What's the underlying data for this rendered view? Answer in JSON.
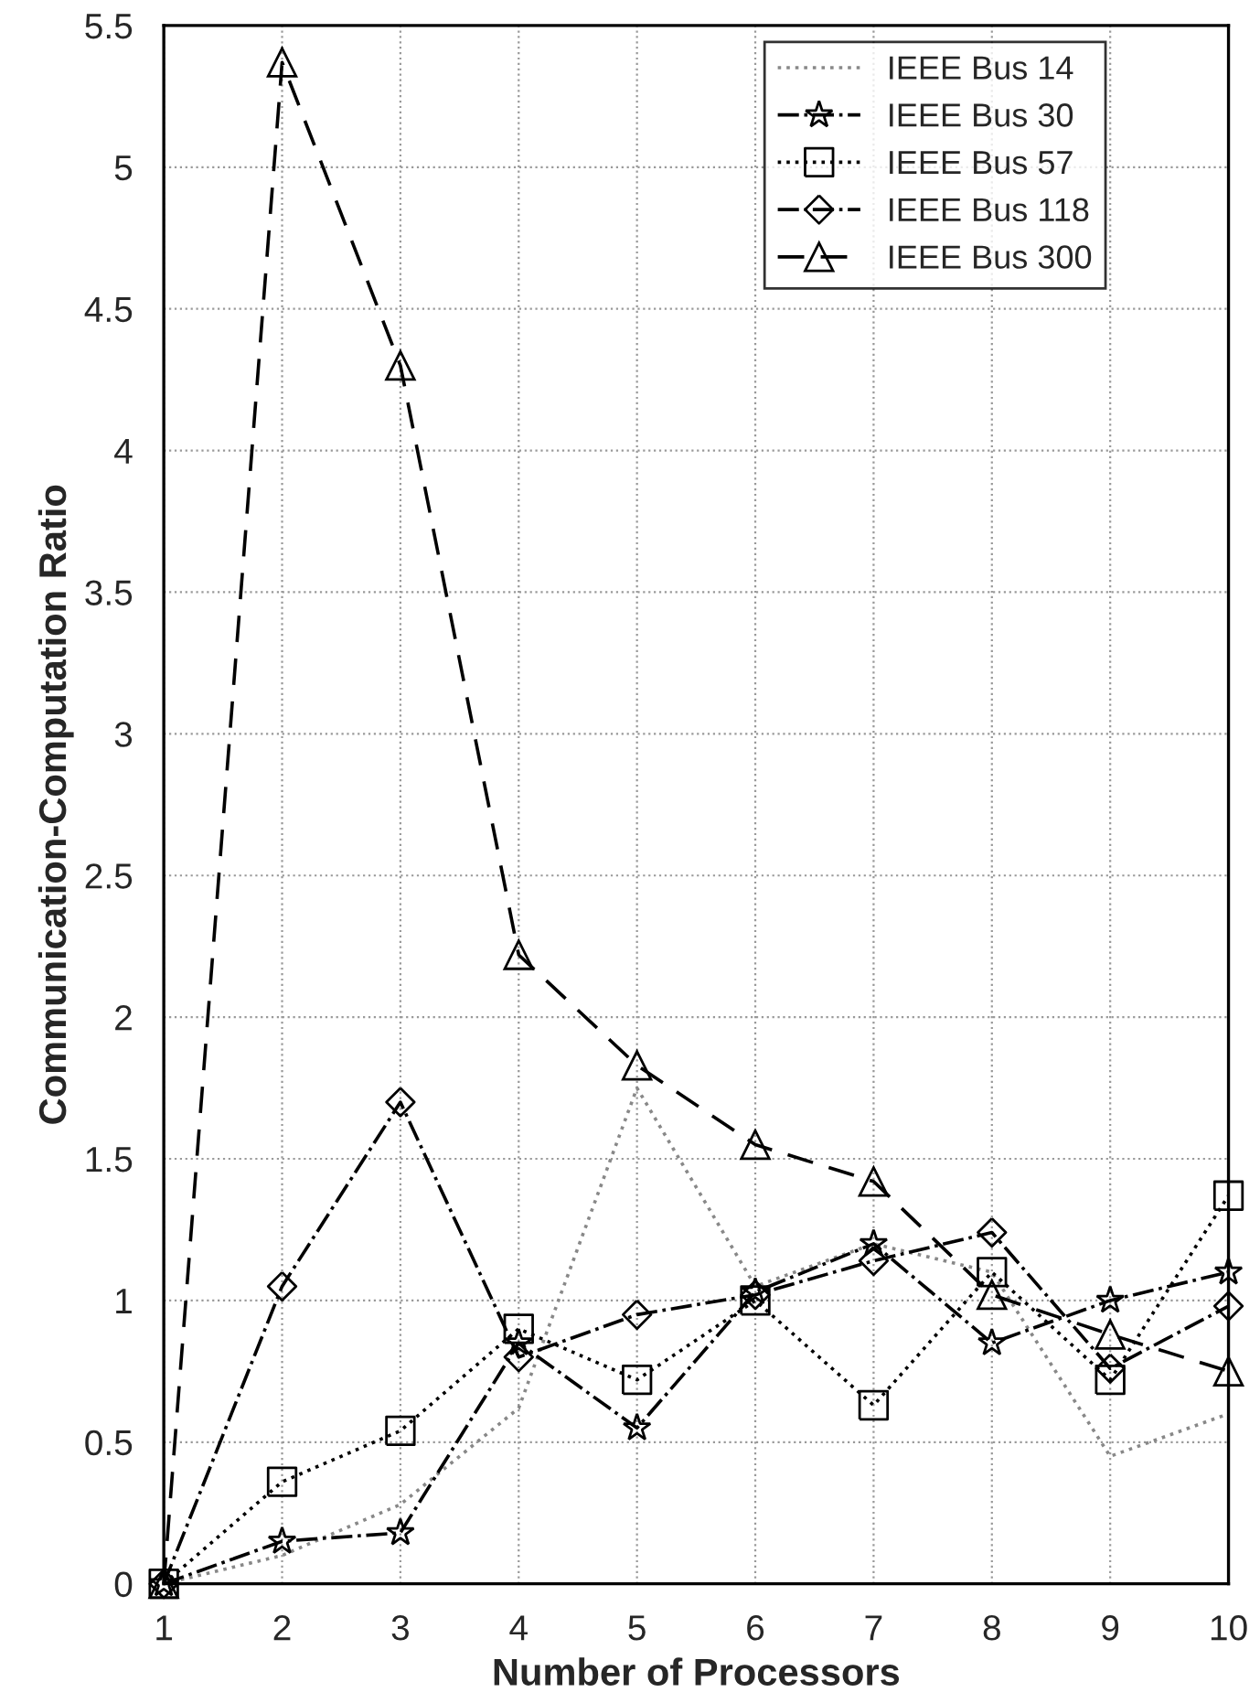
{
  "chart_data": {
    "type": "line",
    "xlabel": "Number of Processors",
    "ylabel": "Communication-Computation Ratio",
    "x": [
      1,
      2,
      3,
      4,
      5,
      6,
      7,
      8,
      9,
      10
    ],
    "series": [
      {
        "name": "IEEE Bus 14",
        "color": "#888888",
        "marker": "none",
        "line_style": "dotted",
        "values": [
          0,
          0.1,
          0.28,
          0.62,
          1.75,
          1.05,
          1.2,
          1.1,
          0.45,
          0.6
        ]
      },
      {
        "name": "IEEE Bus 30",
        "color": "#000000",
        "marker": "star",
        "line_style": "dashdot",
        "values": [
          0,
          0.15,
          0.18,
          0.85,
          0.55,
          1.03,
          1.2,
          0.85,
          1.0,
          1.1
        ]
      },
      {
        "name": "IEEE Bus 57",
        "color": "#000000",
        "marker": "square",
        "line_style": "dotted",
        "values": [
          0,
          0.36,
          0.54,
          0.9,
          0.72,
          1.0,
          0.63,
          1.1,
          0.72,
          1.37
        ]
      },
      {
        "name": "IEEE Bus 118",
        "color": "#000000",
        "marker": "diamond",
        "line_style": "dashdot",
        "values": [
          0,
          1.05,
          1.7,
          0.8,
          0.95,
          1.02,
          1.14,
          1.24,
          0.76,
          0.98
        ]
      },
      {
        "name": "IEEE Bus 300",
        "color": "#000000",
        "marker": "triangle",
        "line_style": "dashed",
        "values": [
          0,
          5.37,
          4.3,
          2.22,
          1.83,
          1.55,
          1.42,
          1.02,
          0.88,
          0.75
        ]
      }
    ],
    "xlim": [
      1,
      10
    ],
    "xticks": [
      1,
      2,
      3,
      4,
      5,
      6,
      7,
      8,
      9,
      10
    ],
    "ylim": [
      0,
      5.5
    ],
    "yticks": [
      0,
      0.5,
      1,
      1.5,
      2,
      2.5,
      3,
      3.5,
      4,
      4.5,
      5,
      5.5
    ],
    "grid": true,
    "legend": "top right"
  }
}
